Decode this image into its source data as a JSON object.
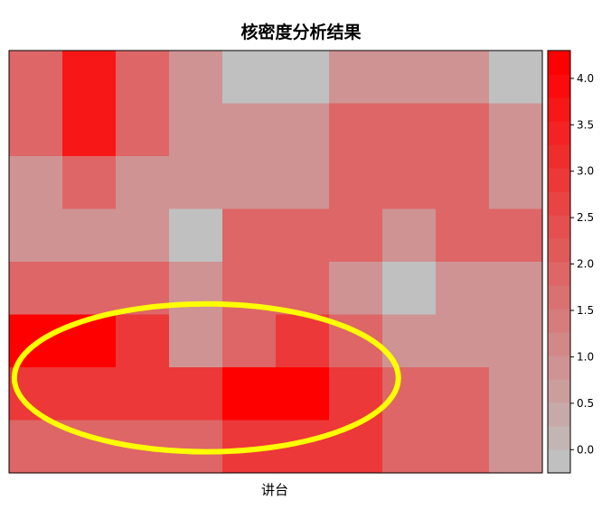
{
  "chart_data": {
    "type": "heatmap",
    "title": "核密度分析结果",
    "xlabel": "讲台",
    "ylabel": "",
    "rows": 8,
    "cols": 10,
    "values": [
      [
        1.9,
        3.6,
        1.9,
        1.0,
        0.0,
        0.0,
        1.0,
        1.0,
        1.0,
        0.0
      ],
      [
        1.9,
        3.6,
        1.9,
        1.0,
        1.0,
        1.0,
        1.9,
        1.9,
        1.9,
        1.0
      ],
      [
        1.0,
        1.9,
        1.0,
        1.0,
        1.0,
        1.0,
        1.9,
        1.9,
        1.9,
        1.0
      ],
      [
        1.0,
        1.0,
        1.0,
        0.0,
        1.9,
        1.9,
        1.9,
        1.0,
        1.9,
        1.9
      ],
      [
        1.9,
        1.9,
        1.9,
        1.0,
        1.9,
        1.9,
        1.0,
        0.0,
        1.0,
        1.0
      ],
      [
        4.2,
        4.2,
        2.8,
        1.0,
        1.9,
        2.8,
        1.9,
        1.0,
        1.0,
        1.0
      ],
      [
        2.8,
        2.8,
        2.8,
        2.8,
        4.2,
        4.2,
        2.8,
        1.9,
        1.9,
        1.0
      ],
      [
        1.9,
        1.9,
        1.9,
        1.9,
        2.8,
        2.8,
        2.8,
        1.9,
        1.9,
        1.0
      ]
    ],
    "colorbar": {
      "min": -0.25,
      "max": 4.3,
      "ticks": [
        "0.0",
        "0.5",
        "1.0",
        "1.5",
        "2.0",
        "2.5",
        "3.0",
        "3.5",
        "4.0"
      ],
      "tick_values": [
        0.0,
        0.5,
        1.0,
        1.5,
        2.0,
        2.5,
        3.0,
        3.5,
        4.0
      ],
      "low_color": "#C0C0C0",
      "high_color": "#FF0000",
      "steps": 18
    },
    "annotation": {
      "shape": "ellipse",
      "color": "#FFFF00",
      "center_col": 3.7,
      "center_row": 6.2,
      "col_radius": 3.6,
      "row_radius": 1.4
    }
  }
}
